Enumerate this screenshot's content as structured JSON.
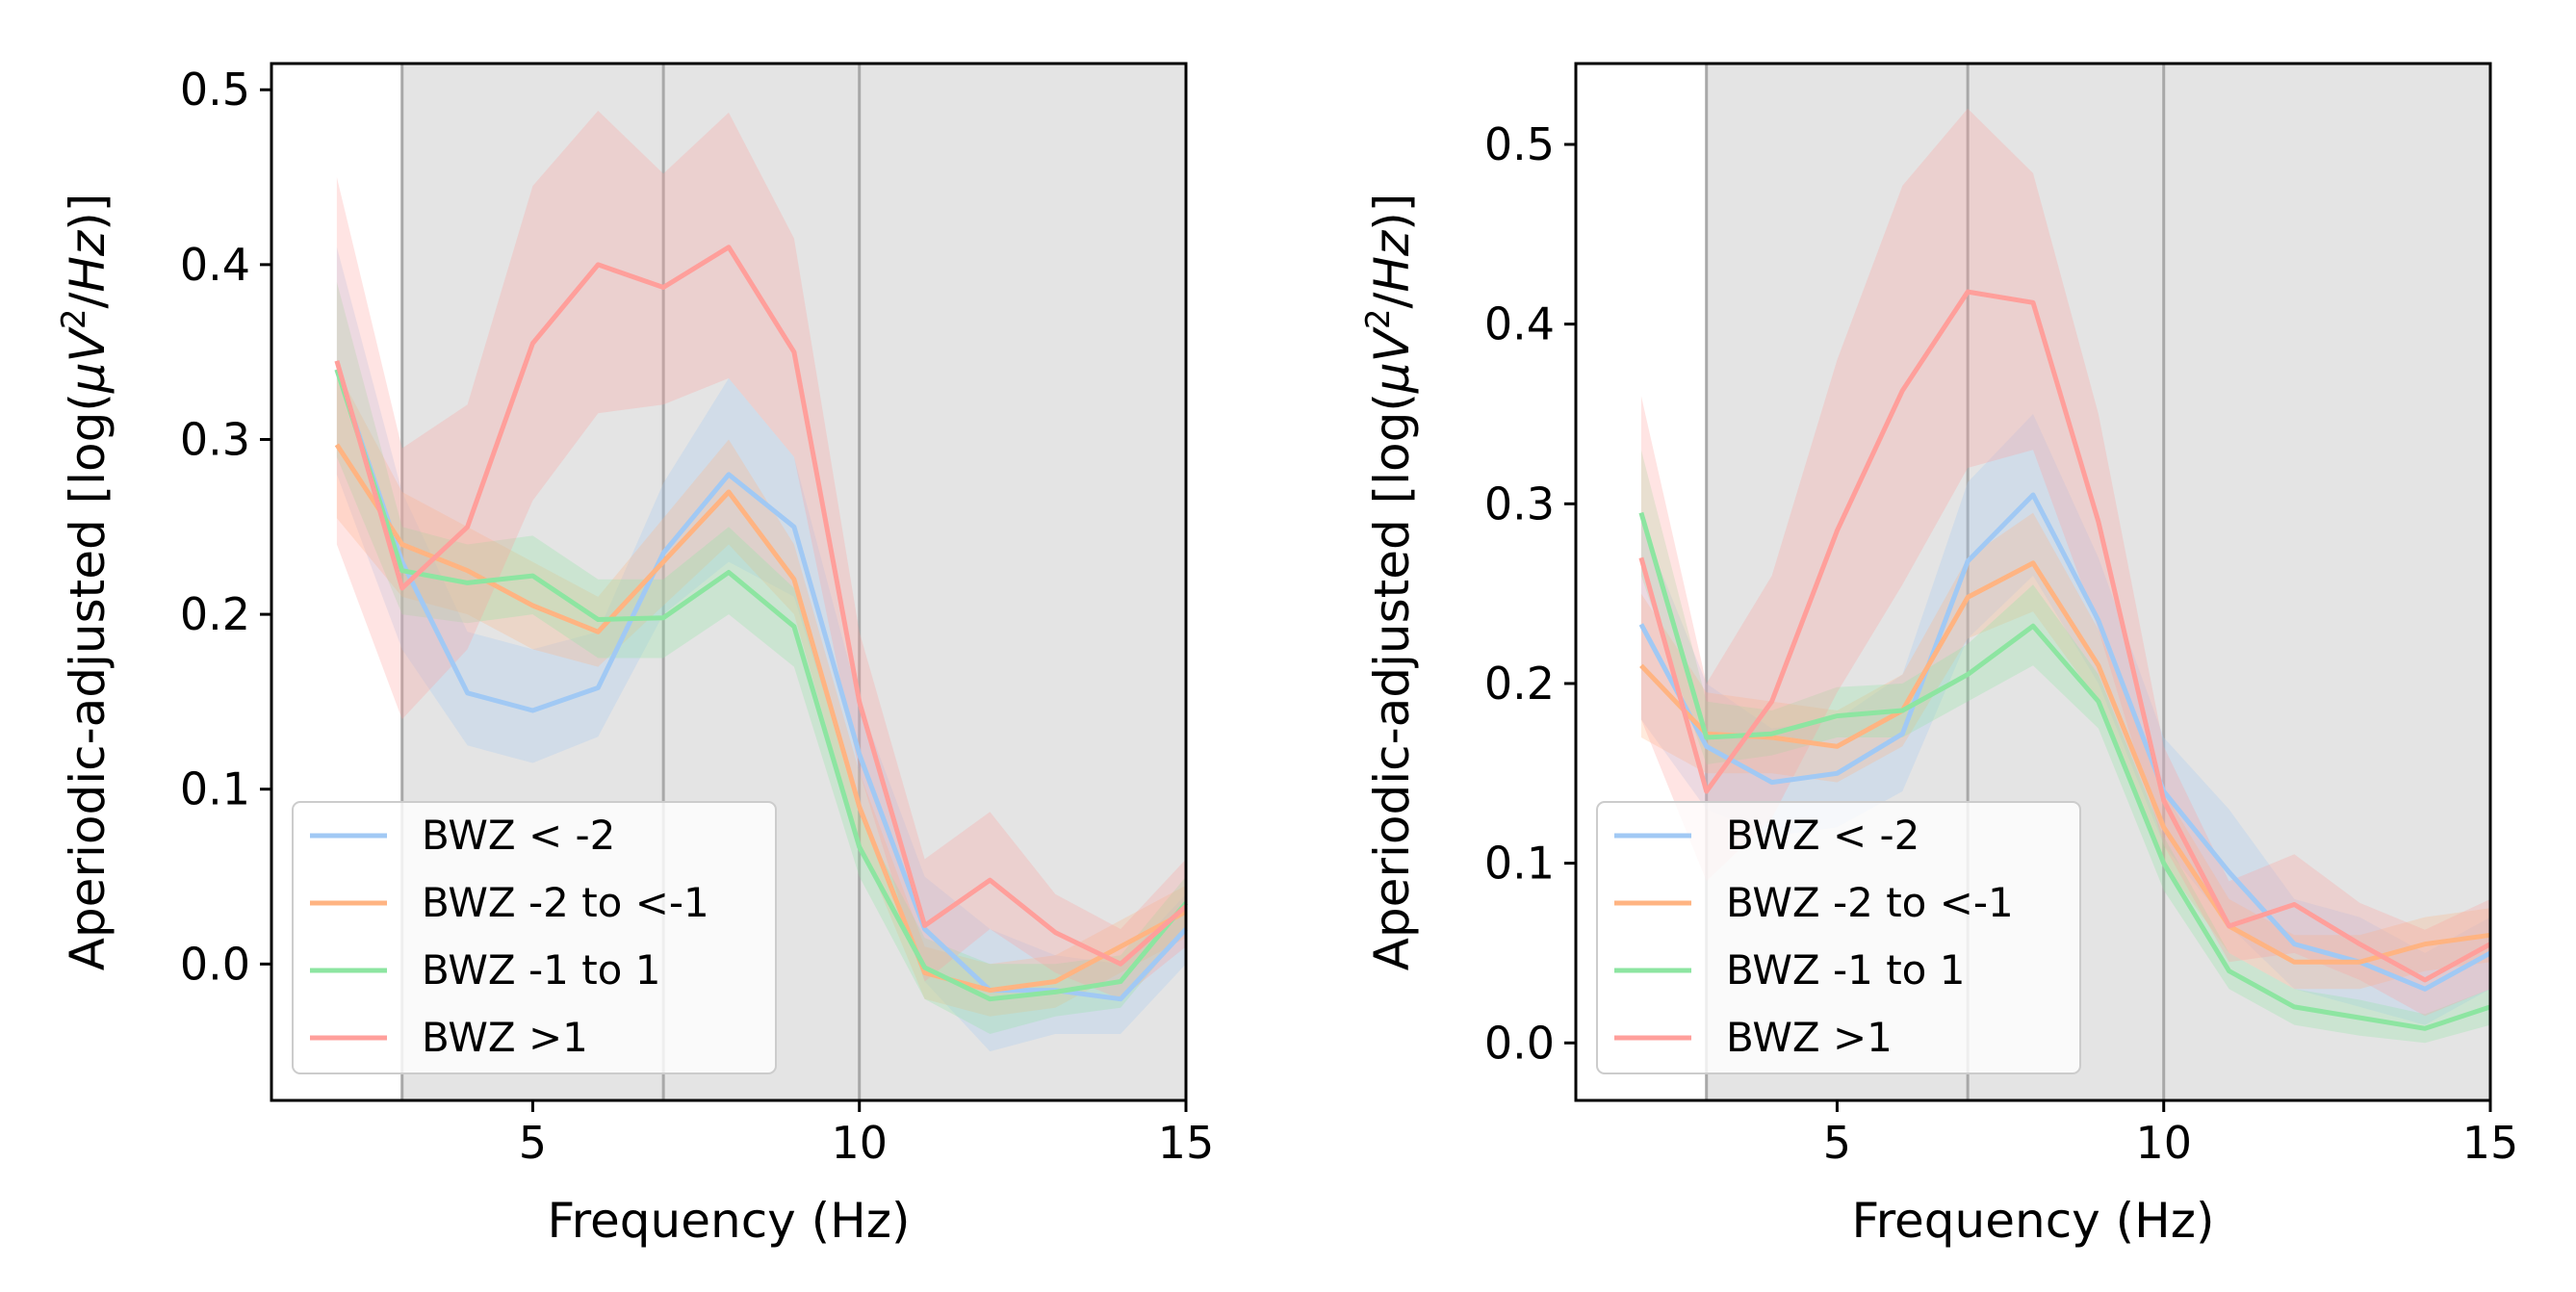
{
  "chart_data": [
    {
      "type": "line",
      "xlabel": "Frequency (Hz)",
      "ylabel": "Aperiodic-adjusted [log(μV²/Hz)]",
      "ylabel_parts": {
        "pre": "Aperiodic-adjusted [log(",
        "mu": "μ",
        "v": "V",
        "sup": "2",
        "post": "/",
        "hz": "Hz",
        "close": ")]"
      },
      "xlim": [
        1.0,
        15.0
      ],
      "ylim": [
        -0.078,
        0.515
      ],
      "xticks": [
        5,
        10,
        15
      ],
      "yticks": [
        0.0,
        0.1,
        0.2,
        0.3,
        0.4,
        0.5
      ],
      "ytick_labels": [
        "0.0",
        "0.1",
        "0.2",
        "0.3",
        "0.4",
        "0.5"
      ],
      "grid": false,
      "shaded_region": {
        "from": 3,
        "to": 15,
        "color": "#e4e4e4"
      },
      "vlines": [
        3,
        7,
        10
      ],
      "legend_position": "lower-left",
      "x": [
        2,
        3,
        4,
        5,
        6,
        7,
        8,
        9,
        10,
        11,
        12,
        13,
        14,
        15
      ],
      "series": [
        {
          "name": "BWZ < -2",
          "color": "#a1c9f4",
          "values": [
            0.34,
            0.23,
            0.155,
            0.145,
            0.158,
            0.235,
            0.28,
            0.25,
            0.12,
            0.02,
            -0.015,
            -0.015,
            -0.02,
            0.02
          ],
          "lower": [
            0.28,
            0.18,
            0.125,
            0.115,
            0.13,
            0.2,
            0.23,
            0.21,
            0.09,
            -0.01,
            -0.05,
            -0.04,
            -0.04,
            0.0
          ],
          "upper": [
            0.41,
            0.27,
            0.19,
            0.18,
            0.19,
            0.275,
            0.335,
            0.29,
            0.15,
            0.05,
            0.02,
            0.005,
            0.0,
            0.04
          ]
        },
        {
          "name": "BWZ -2 to <-1",
          "color": "#ffb482",
          "values": [
            0.297,
            0.24,
            0.225,
            0.205,
            0.19,
            0.23,
            0.27,
            0.22,
            0.09,
            -0.005,
            -0.015,
            -0.01,
            0.01,
            0.03
          ],
          "lower": [
            0.255,
            0.21,
            0.2,
            0.18,
            0.17,
            0.205,
            0.24,
            0.2,
            0.07,
            -0.02,
            -0.03,
            -0.025,
            -0.005,
            0.015
          ],
          "upper": [
            0.34,
            0.27,
            0.25,
            0.23,
            0.21,
            0.255,
            0.3,
            0.24,
            0.11,
            0.01,
            0.0,
            0.005,
            0.025,
            0.045
          ]
        },
        {
          "name": "BWZ -1 to 1",
          "color": "#8de5a1",
          "values": [
            0.34,
            0.225,
            0.218,
            0.222,
            0.197,
            0.198,
            0.224,
            0.193,
            0.067,
            -0.002,
            -0.02,
            -0.016,
            -0.01,
            0.035
          ],
          "lower": [
            0.29,
            0.2,
            0.195,
            0.2,
            0.175,
            0.175,
            0.2,
            0.17,
            0.05,
            -0.02,
            -0.04,
            -0.03,
            -0.025,
            0.02
          ],
          "upper": [
            0.39,
            0.25,
            0.24,
            0.245,
            0.22,
            0.22,
            0.25,
            0.215,
            0.085,
            0.015,
            0.0,
            0.0,
            0.005,
            0.05
          ]
        },
        {
          "name": "BWZ >1",
          "color": "#ff9f9b",
          "values": [
            0.345,
            0.215,
            0.25,
            0.355,
            0.4,
            0.387,
            0.41,
            0.35,
            0.15,
            0.022,
            0.048,
            0.018,
            0.0,
            0.033
          ],
          "lower": [
            0.24,
            0.14,
            0.18,
            0.265,
            0.315,
            0.32,
            0.335,
            0.29,
            0.11,
            -0.01,
            0.02,
            -0.005,
            -0.02,
            0.01
          ],
          "upper": [
            0.45,
            0.295,
            0.32,
            0.445,
            0.488,
            0.452,
            0.487,
            0.415,
            0.19,
            0.06,
            0.087,
            0.04,
            0.02,
            0.06
          ]
        }
      ]
    },
    {
      "type": "line",
      "xlabel": "Frequency (Hz)",
      "ylabel": "Aperiodic-adjusted [log(μV²/Hz)]",
      "ylabel_parts": {
        "pre": "Aperiodic-adjusted [log(",
        "mu": "μ",
        "v": "V",
        "sup": "2",
        "post": "/",
        "hz": "Hz",
        "close": ")]"
      },
      "xlim": [
        1.0,
        15.0
      ],
      "ylim": [
        -0.032,
        0.545
      ],
      "xticks": [
        5,
        10,
        15
      ],
      "yticks": [
        0.0,
        0.1,
        0.2,
        0.3,
        0.4,
        0.5
      ],
      "ytick_labels": [
        "0.0",
        "0.1",
        "0.2",
        "0.3",
        "0.4",
        "0.5"
      ],
      "grid": false,
      "shaded_region": {
        "from": 3,
        "to": 15,
        "color": "#e4e4e4"
      },
      "vlines": [
        3,
        7,
        10
      ],
      "legend_position": "lower-left",
      "x": [
        2,
        3,
        4,
        5,
        6,
        7,
        8,
        9,
        10,
        11,
        12,
        13,
        14,
        15
      ],
      "series": [
        {
          "name": "BWZ < -2",
          "color": "#a1c9f4",
          "values": [
            0.233,
            0.165,
            0.145,
            0.15,
            0.172,
            0.268,
            0.305,
            0.235,
            0.14,
            0.095,
            0.055,
            0.045,
            0.03,
            0.05
          ],
          "lower": [
            0.18,
            0.13,
            0.115,
            0.12,
            0.14,
            0.225,
            0.26,
            0.2,
            0.11,
            0.065,
            0.03,
            0.02,
            0.01,
            0.03
          ],
          "upper": [
            0.29,
            0.2,
            0.175,
            0.18,
            0.205,
            0.312,
            0.35,
            0.27,
            0.17,
            0.13,
            0.08,
            0.07,
            0.05,
            0.07
          ]
        },
        {
          "name": "BWZ -2 to <-1",
          "color": "#ffb482",
          "values": [
            0.21,
            0.172,
            0.17,
            0.165,
            0.185,
            0.248,
            0.267,
            0.21,
            0.12,
            0.065,
            0.045,
            0.045,
            0.055,
            0.06
          ],
          "lower": [
            0.17,
            0.15,
            0.15,
            0.145,
            0.165,
            0.225,
            0.24,
            0.19,
            0.1,
            0.05,
            0.03,
            0.03,
            0.04,
            0.045
          ],
          "upper": [
            0.25,
            0.195,
            0.19,
            0.185,
            0.205,
            0.27,
            0.295,
            0.23,
            0.14,
            0.08,
            0.06,
            0.06,
            0.07,
            0.075
          ]
        },
        {
          "name": "BWZ -1 to 1",
          "color": "#8de5a1",
          "values": [
            0.295,
            0.17,
            0.172,
            0.182,
            0.185,
            0.205,
            0.232,
            0.19,
            0.1,
            0.04,
            0.02,
            0.014,
            0.008,
            0.02
          ],
          "lower": [
            0.26,
            0.155,
            0.16,
            0.17,
            0.17,
            0.19,
            0.21,
            0.175,
            0.085,
            0.03,
            0.01,
            0.004,
            0.0,
            0.01
          ],
          "upper": [
            0.33,
            0.19,
            0.185,
            0.198,
            0.2,
            0.222,
            0.255,
            0.205,
            0.115,
            0.05,
            0.03,
            0.024,
            0.016,
            0.03
          ]
        },
        {
          "name": "BWZ >1",
          "color": "#ff9f9b",
          "values": [
            0.27,
            0.14,
            0.19,
            0.285,
            0.363,
            0.418,
            0.412,
            0.29,
            0.135,
            0.065,
            0.077,
            0.055,
            0.035,
            0.055
          ],
          "lower": [
            0.18,
            0.09,
            0.125,
            0.195,
            0.255,
            0.32,
            0.33,
            0.23,
            0.11,
            0.045,
            0.05,
            0.035,
            0.015,
            0.03
          ],
          "upper": [
            0.36,
            0.2,
            0.26,
            0.38,
            0.477,
            0.52,
            0.484,
            0.35,
            0.165,
            0.09,
            0.105,
            0.078,
            0.063,
            0.08
          ]
        }
      ]
    }
  ]
}
